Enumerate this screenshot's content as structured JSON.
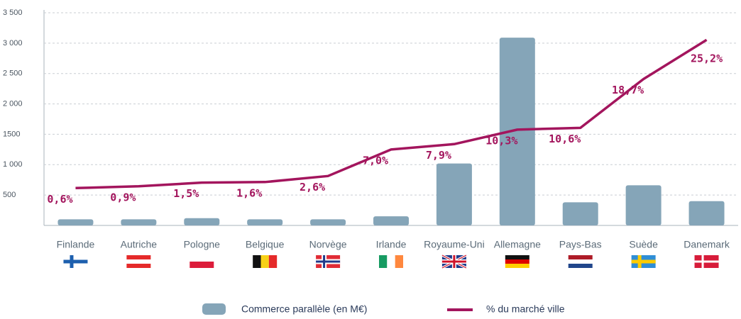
{
  "chart_data": {
    "type": "bar",
    "categories": [
      "Finlande",
      "Autriche",
      "Pologne",
      "Belgique",
      "Norvège",
      "Irlande",
      "Royaume-Uni",
      "Allemagne",
      "Pays-Bas",
      "Suède",
      "Danemark"
    ],
    "series": [
      {
        "name": "Commerce parallèle (en M€)",
        "type": "bar",
        "color": "#85a5b8",
        "values": [
          100,
          100,
          120,
          100,
          100,
          150,
          1020,
          3090,
          380,
          660,
          400
        ]
      },
      {
        "name": "% du marché ville",
        "type": "line",
        "axis": "y2",
        "color": "#a3155d",
        "values": [
          0.6,
          0.9,
          1.5,
          1.6,
          2.6,
          7.0,
          7.9,
          10.3,
          10.6,
          18.7,
          25.2
        ],
        "value_labels": [
          "0,6%",
          "0,9%",
          "1,5%",
          "1,6%",
          "2,6%",
          "7,0%",
          "7,9%",
          "10,3%",
          "10,6%",
          "18,7%",
          "25,2%"
        ]
      }
    ],
    "ylim": [
      0,
      3500
    ],
    "yticks": [
      500,
      {
        "value": 1000,
        "label": "1 000"
      },
      {
        "value": 1500,
        "label": "1500"
      },
      {
        "value": 2000,
        "label": "2 000"
      },
      {
        "value": 2500,
        "label": "2 500"
      },
      {
        "value": 3000,
        "label": "3 000"
      },
      {
        "value": 3500,
        "label": "3 500"
      }
    ],
    "y2lim": [
      -5.6,
      29.7
    ],
    "grid": true
  }
}
